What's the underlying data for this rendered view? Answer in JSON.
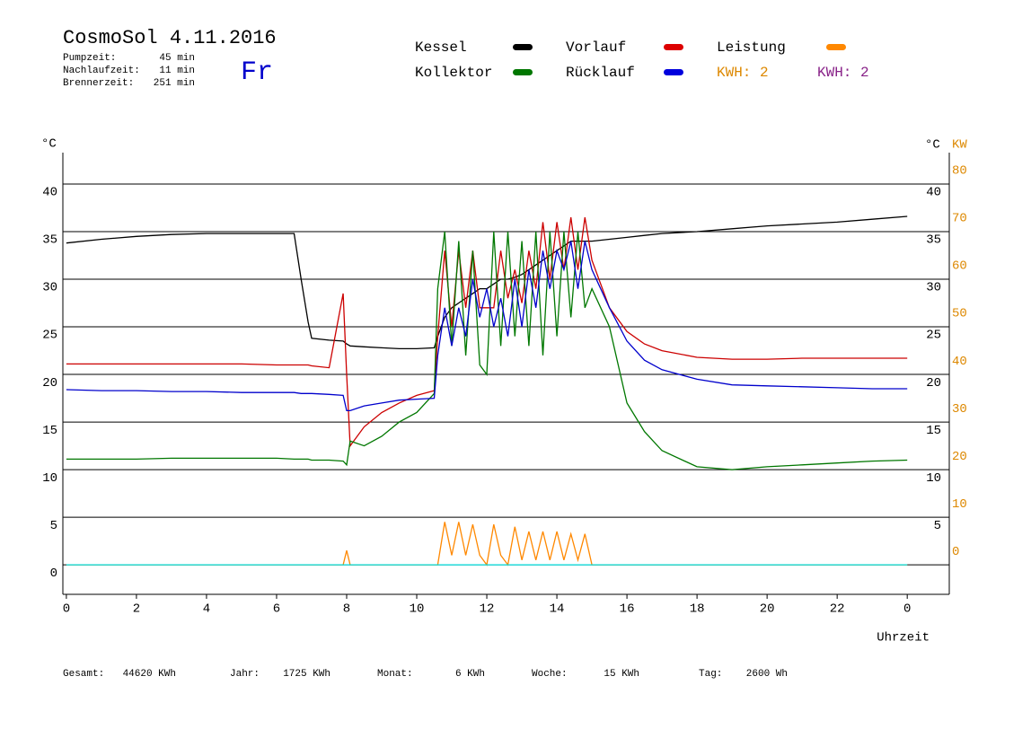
{
  "header": {
    "title": "CosmoSol 4.11.2016",
    "day": "Fr",
    "info": [
      [
        "Pumpzeit:",
        "45 min"
      ],
      [
        "Nachlaufzeit:",
        "11 min"
      ],
      [
        "Brennerzeit:",
        "251 min"
      ]
    ]
  },
  "kwh_labels": [
    "KWH: 2",
    "KWH: 2"
  ],
  "footer": [
    [
      "Gesamt:",
      "44620 KWh"
    ],
    [
      "Jahr:",
      "1725 KWh"
    ],
    [
      "Monat:",
      "6 KWh"
    ],
    [
      "Woche:",
      "15 KWh"
    ],
    [
      "Tag:",
      "2600 Wh"
    ]
  ],
  "chart_data": {
    "type": "line",
    "y_label": "°C",
    "y2_label_c": "°C",
    "y2_label": "KW",
    "x_label": "Uhrzeit",
    "x": [
      0,
      1,
      2,
      3,
      4,
      5,
      6,
      6.5,
      6.7,
      6.9,
      7,
      7.5,
      7.9,
      8,
      8.1,
      8.5,
      9,
      9.5,
      10,
      10.5,
      10.6,
      10.8,
      11,
      11.2,
      11.4,
      11.6,
      11.8,
      12,
      12.2,
      12.4,
      12.6,
      12.8,
      13,
      13.2,
      13.4,
      13.6,
      13.8,
      14,
      14.2,
      14.4,
      14.6,
      14.8,
      15,
      15.5,
      16,
      16.5,
      17,
      18,
      19,
      20,
      21,
      22,
      23,
      24
    ],
    "series": [
      {
        "name": "Kessel",
        "color": "#000000",
        "values": [
          33.8,
          34.2,
          34.5,
          34.7,
          34.8,
          34.8,
          34.8,
          34.8,
          30,
          25.5,
          23.8,
          23.6,
          23.5,
          23.2,
          23,
          22.9,
          22.8,
          22.7,
          22.7,
          22.8,
          24,
          26,
          27,
          27.5,
          28,
          28.5,
          29,
          29,
          29.5,
          30,
          30,
          30.2,
          30.5,
          31,
          31.5,
          32,
          32.5,
          33,
          33.5,
          34,
          34,
          34,
          34,
          34.2,
          34.4,
          34.6,
          34.8,
          35,
          35.3,
          35.6,
          35.8,
          36,
          36.3,
          36.6
        ]
      },
      {
        "name": "Vorlauf",
        "color": "#cc0000",
        "values": [
          21.1,
          21.1,
          21.1,
          21.1,
          21.1,
          21.1,
          21,
          21,
          21,
          21,
          20.9,
          20.7,
          28.5,
          20,
          12.5,
          14.5,
          16,
          17,
          17.8,
          18.3,
          24,
          33,
          25,
          33,
          27,
          33,
          27,
          27,
          27,
          33,
          28,
          31,
          27.5,
          33,
          29,
          36,
          30,
          36,
          31,
          36.5,
          31,
          36.5,
          32,
          27,
          24.5,
          23.2,
          22.5,
          21.8,
          21.6,
          21.6,
          21.7,
          21.7,
          21.7,
          21.7
        ]
      },
      {
        "name": "Kollektor",
        "color": "#007700",
        "values": [
          11.1,
          11.1,
          11.1,
          11.2,
          11.2,
          11.2,
          11.2,
          11.1,
          11.1,
          11.1,
          11,
          11,
          10.9,
          10.5,
          13,
          12.5,
          13.5,
          15,
          16,
          18,
          29,
          35,
          23,
          34,
          22,
          33,
          21,
          20,
          35,
          23,
          35,
          24,
          34,
          23,
          35,
          22,
          35,
          24,
          35,
          26,
          35,
          27,
          29,
          25,
          17,
          14,
          12,
          10.3,
          10,
          10.3,
          10.5,
          10.7,
          10.9,
          11
        ]
      },
      {
        "name": "Rücklauf",
        "color": "#0000cc",
        "values": [
          18.4,
          18.3,
          18.3,
          18.2,
          18.2,
          18.1,
          18.1,
          18.1,
          18,
          18,
          18,
          17.9,
          17.8,
          16.2,
          16.2,
          16.7,
          17,
          17.3,
          17.4,
          17.5,
          22,
          27,
          23,
          27,
          24,
          30,
          26,
          29,
          25,
          28,
          24,
          30,
          25,
          31,
          27,
          33,
          29,
          33,
          31,
          34,
          29,
          34,
          31,
          27,
          23.5,
          21.5,
          20.5,
          19.5,
          18.9,
          18.8,
          18.7,
          18.6,
          18.5,
          18.5
        ]
      },
      {
        "name": "Leistung",
        "color": "#ff8800",
        "axis": "y2",
        "values": [
          0,
          0,
          0,
          0,
          0,
          0,
          0,
          0,
          0,
          0,
          0,
          0,
          0,
          3,
          0,
          0,
          0,
          0,
          0,
          0,
          0,
          9,
          2,
          9,
          2,
          8.5,
          2,
          0,
          8.5,
          2,
          0,
          8,
          1,
          7,
          1,
          7,
          1,
          7,
          1,
          6.5,
          1,
          6.5,
          0,
          0,
          0,
          0,
          0,
          0,
          0,
          0,
          0,
          0,
          0,
          0
        ]
      },
      {
        "color": "#00dddd",
        "values": [
          0,
          0,
          0,
          0,
          0,
          0,
          0,
          0,
          0,
          0,
          0,
          0,
          0,
          0,
          0,
          0,
          0,
          0,
          0,
          0,
          0,
          0,
          0,
          0,
          0,
          0,
          0,
          0,
          0,
          0,
          0,
          0,
          0,
          0,
          0,
          0,
          0,
          0,
          0,
          0,
          0,
          0,
          0,
          0,
          0,
          0,
          0,
          0,
          0,
          0,
          0,
          0,
          0,
          0
        ]
      }
    ],
    "xlim": [
      -0.1,
      25.2
    ],
    "ylim": [
      -3.1,
      43.3
    ],
    "y2lim": [
      -6.2,
      86.6
    ],
    "xticks": [
      0,
      2,
      4,
      6,
      8,
      10,
      12,
      14,
      16,
      18,
      20,
      22,
      {
        "value": 24,
        "label": "0"
      }
    ],
    "yticks": [
      0,
      5,
      10,
      15,
      20,
      25,
      30,
      35,
      40
    ],
    "y2ticks": [
      0,
      10,
      20,
      30,
      40,
      50,
      60,
      70,
      80
    ],
    "grid": true
  }
}
